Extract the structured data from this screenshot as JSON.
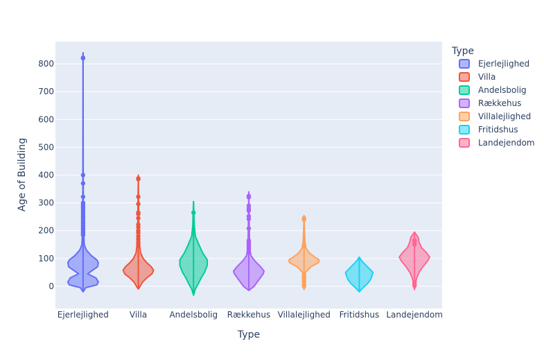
{
  "chart_data": {
    "type": "violin",
    "title": "",
    "xlabel": "Type",
    "ylabel": "Age of Building",
    "ylim": [
      -80,
      880
    ],
    "yticks": [
      0,
      100,
      200,
      300,
      400,
      500,
      600,
      700,
      800
    ],
    "grid": true,
    "legend": {
      "title": "Type",
      "placement": "right"
    },
    "categories": [
      "Ejerlejlighed",
      "Villa",
      "Andelsbolig",
      "Rækkehus",
      "Villalejlighed",
      "Fritidshus",
      "Landejendom"
    ],
    "series": [
      {
        "name": "Ejerlejlighed",
        "color": "#636efa",
        "range": [
          -20,
          840
        ],
        "profile": [
          [
            -20,
            0
          ],
          [
            -5,
            0.18
          ],
          [
            5,
            0.9
          ],
          [
            15,
            1.0
          ],
          [
            30,
            0.85
          ],
          [
            45,
            0.3
          ],
          [
            55,
            0.55
          ],
          [
            70,
            0.95
          ],
          [
            85,
            1.0
          ],
          [
            95,
            0.9
          ],
          [
            110,
            0.55
          ],
          [
            130,
            0.22
          ],
          [
            150,
            0.08
          ],
          [
            180,
            0.05
          ],
          [
            260,
            0.02
          ],
          [
            400,
            0.01
          ],
          [
            600,
            0.005
          ],
          [
            840,
            0
          ]
        ],
        "outliers": [
          820,
          822,
          400,
          370,
          322,
          300,
          292,
          285,
          278,
          270,
          262,
          255,
          248,
          240,
          232,
          225,
          218,
          210,
          203,
          196,
          190,
          184
        ]
      },
      {
        "name": "Villa",
        "color": "#EF553B",
        "range": [
          -10,
          400
        ],
        "profile": [
          [
            -10,
            0
          ],
          [
            0,
            0.12
          ],
          [
            15,
            0.28
          ],
          [
            30,
            0.55
          ],
          [
            45,
            0.9
          ],
          [
            58,
            1.0
          ],
          [
            70,
            0.85
          ],
          [
            85,
            0.55
          ],
          [
            100,
            0.32
          ],
          [
            120,
            0.15
          ],
          [
            150,
            0.08
          ],
          [
            200,
            0.04
          ],
          [
            300,
            0.02
          ],
          [
            400,
            0
          ]
        ],
        "outliers": [
          388,
          385,
          322,
          296,
          265,
          260,
          245,
          222,
          212,
          200,
          192,
          180,
          170,
          160,
          152,
          146
        ]
      },
      {
        "name": "Andelsbolig",
        "color": "#00cc96",
        "range": [
          -32,
          305
        ],
        "profile": [
          [
            -32,
            0
          ],
          [
            -10,
            0.12
          ],
          [
            10,
            0.32
          ],
          [
            30,
            0.5
          ],
          [
            50,
            0.72
          ],
          [
            75,
            0.9
          ],
          [
            95,
            0.9
          ],
          [
            120,
            0.6
          ],
          [
            150,
            0.35
          ],
          [
            180,
            0.12
          ],
          [
            220,
            0.05
          ],
          [
            260,
            0.03
          ],
          [
            305,
            0
          ]
        ],
        "outliers": [
          265
        ]
      },
      {
        "name": "Rækkehus",
        "color": "#ab63fa",
        "range": [
          -15,
          340
        ],
        "profile": [
          [
            -15,
            0
          ],
          [
            0,
            0.35
          ],
          [
            15,
            0.55
          ],
          [
            30,
            0.75
          ],
          [
            45,
            0.95
          ],
          [
            55,
            1.0
          ],
          [
            70,
            0.78
          ],
          [
            90,
            0.42
          ],
          [
            110,
            0.15
          ],
          [
            130,
            0.08
          ],
          [
            160,
            0.05
          ],
          [
            220,
            0.03
          ],
          [
            280,
            0.02
          ],
          [
            340,
            0
          ]
        ],
        "outliers": [
          325,
          320,
          290,
          280,
          272,
          252,
          242,
          208,
          165,
          160,
          155,
          150,
          146,
          142,
          138,
          134,
          130,
          126,
          122
        ]
      },
      {
        "name": "Villalejlighed",
        "color": "#FFA15A",
        "range": [
          -12,
          255
        ],
        "profile": [
          [
            -12,
            0
          ],
          [
            0,
            0.02
          ],
          [
            15,
            0.03
          ],
          [
            30,
            0.05
          ],
          [
            50,
            0.1
          ],
          [
            70,
            0.45
          ],
          [
            85,
            0.95
          ],
          [
            95,
            1.0
          ],
          [
            105,
            0.7
          ],
          [
            120,
            0.35
          ],
          [
            135,
            0.15
          ],
          [
            150,
            0.07
          ],
          [
            200,
            0.03
          ],
          [
            255,
            0
          ]
        ],
        "outliers": [
          245,
          240,
          150,
          145,
          38,
          32,
          25,
          18,
          10,
          5,
          0
        ]
      },
      {
        "name": "Fritidshus",
        "color": "#19d3f3",
        "range": [
          -20,
          105
        ],
        "profile": [
          [
            -20,
            0
          ],
          [
            -5,
            0.25
          ],
          [
            10,
            0.55
          ],
          [
            25,
            0.75
          ],
          [
            40,
            0.85
          ],
          [
            50,
            0.9
          ],
          [
            60,
            0.72
          ],
          [
            75,
            0.45
          ],
          [
            90,
            0.18
          ],
          [
            105,
            0
          ]
        ],
        "outliers": []
      },
      {
        "name": "Landejendom",
        "color": "#FF6692",
        "range": [
          -12,
          195
        ],
        "profile": [
          [
            -12,
            0
          ],
          [
            0,
            0.05
          ],
          [
            15,
            0.08
          ],
          [
            30,
            0.15
          ],
          [
            50,
            0.3
          ],
          [
            70,
            0.55
          ],
          [
            90,
            0.85
          ],
          [
            105,
            1.0
          ],
          [
            120,
            0.8
          ],
          [
            140,
            0.45
          ],
          [
            160,
            0.3
          ],
          [
            175,
            0.25
          ],
          [
            195,
            0
          ]
        ],
        "outliers": [
          165,
          160,
          150,
          15,
          10,
          5,
          2
        ]
      }
    ]
  }
}
